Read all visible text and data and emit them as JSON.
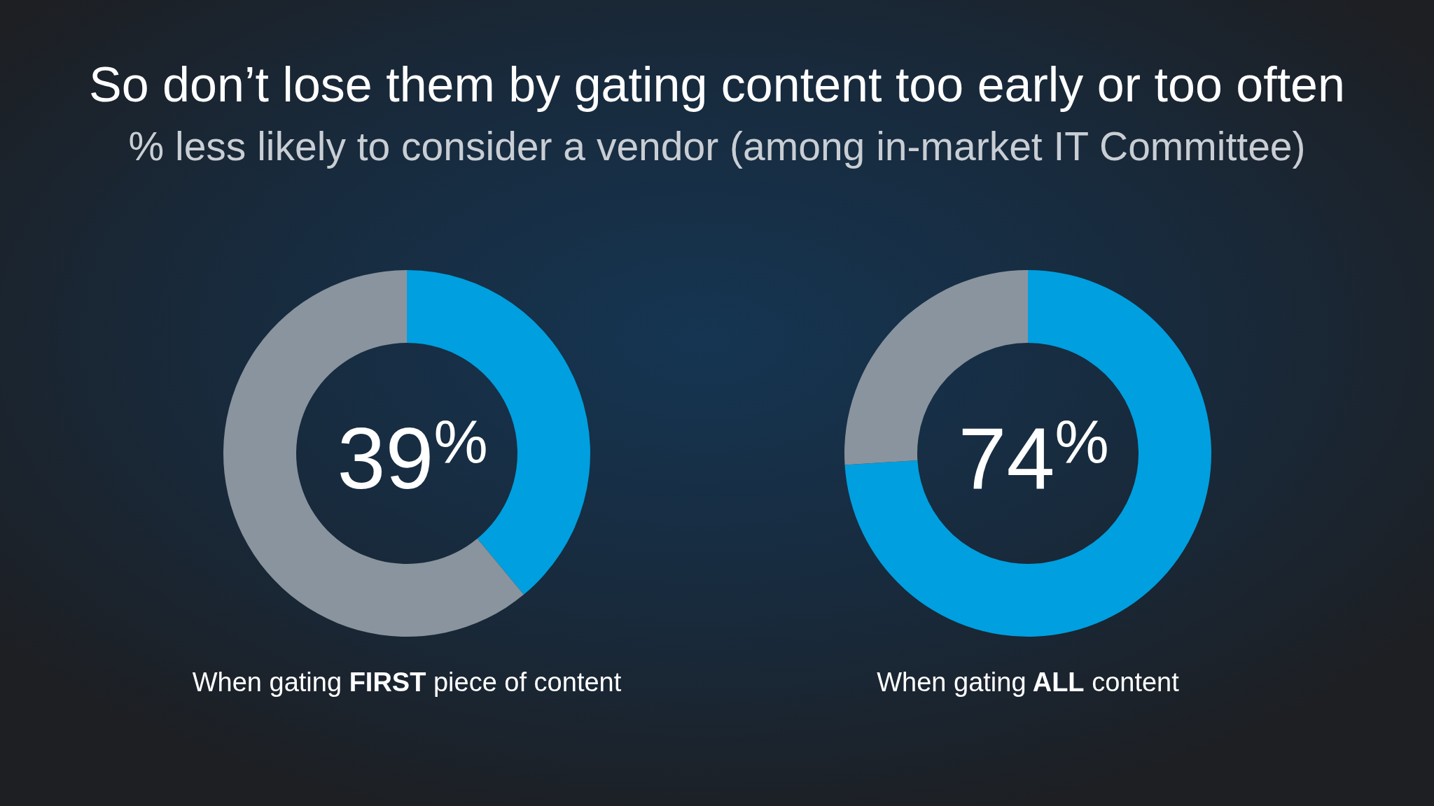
{
  "chart_data": [
    {
      "type": "donut",
      "title": "So don’t lose them by gating content too early or too often",
      "subtitle": "% less likely to consider a vendor (among in-market IT Committee)",
      "categories": [
        null,
        null
      ],
      "values": [
        39,
        61
      ],
      "colors": [
        "#009fdf",
        "#8a949e"
      ],
      "annotations": [
        "39$^{%}$"
      ],
      "xlabel": "When gating FIRST piece of content"
    },
    {
      "type": "donut",
      "categories": [
        null,
        null
      ],
      "values": [
        74,
        26
      ],
      "colors": [
        "#009fdf",
        "#8a949e"
      ],
      "annotations": [
        "74$^{%}$"
      ],
      "xlabel": "When gating ALL content"
    }
  ]
}
